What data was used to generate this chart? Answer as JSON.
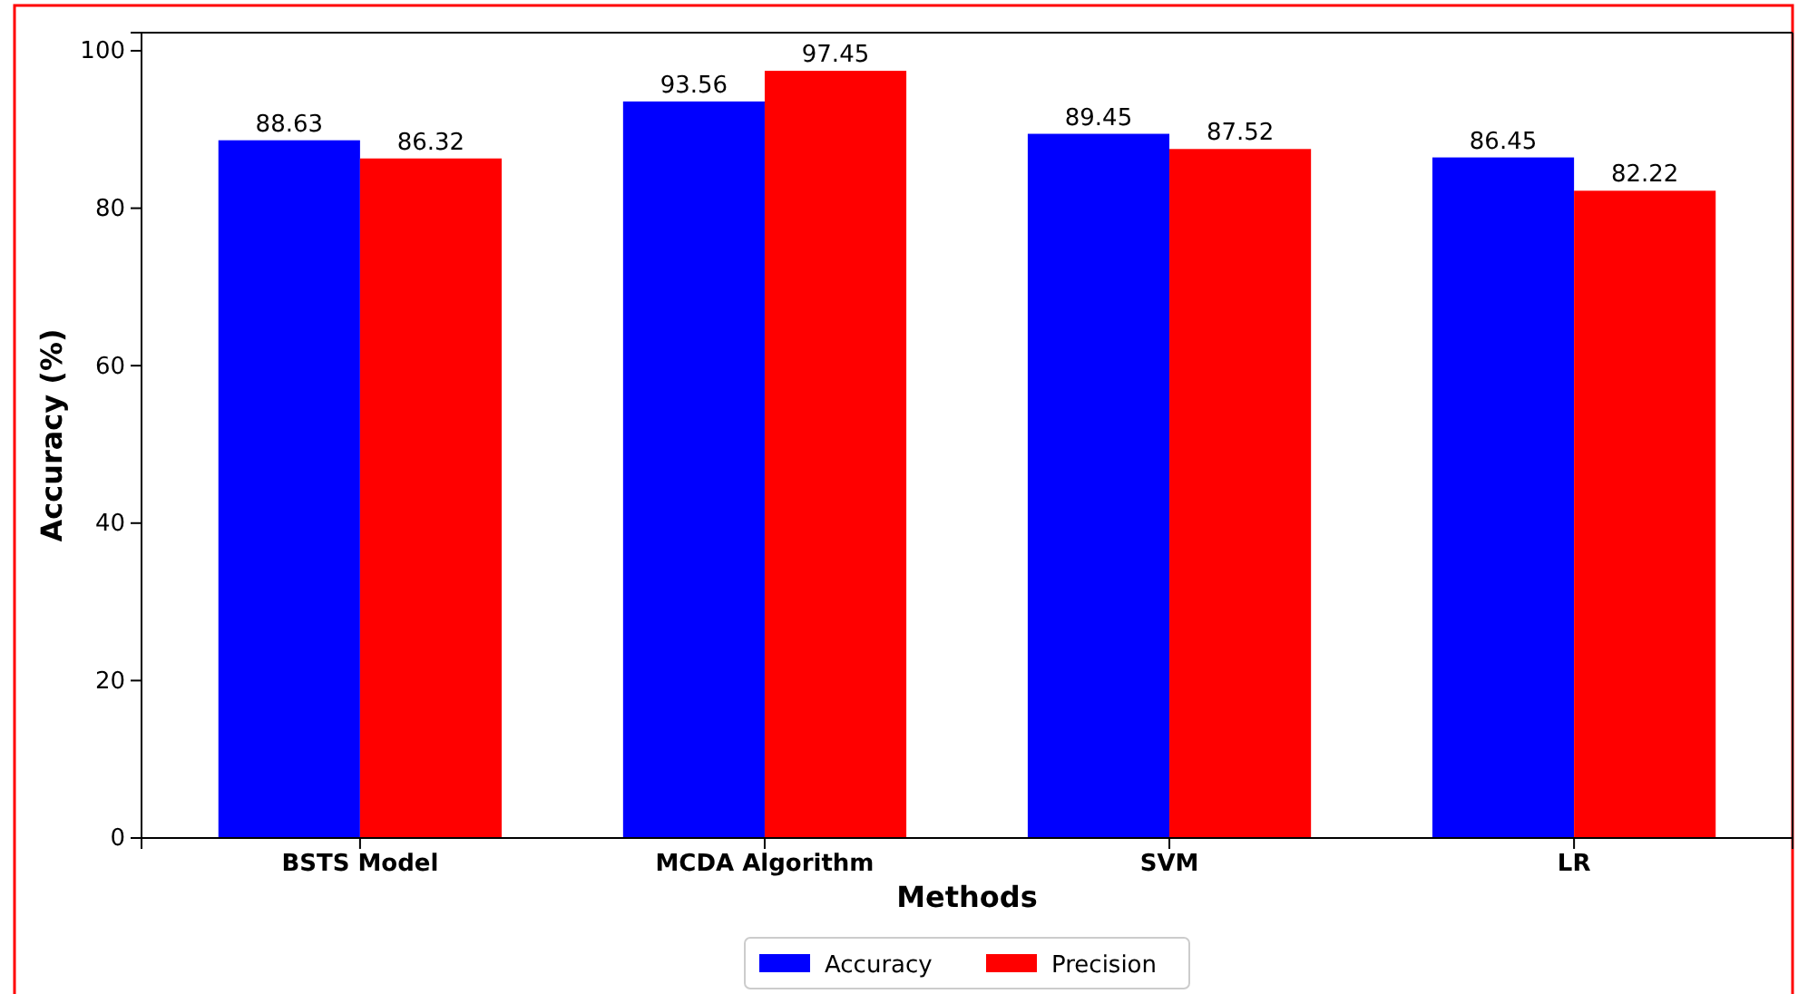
{
  "chart_data": {
    "type": "bar",
    "xlabel": "Methods",
    "ylabel": "Accuracy (%)",
    "categories": [
      "BSTS Model",
      "MCDA Algorithm",
      "SVM",
      "LR"
    ],
    "series": [
      {
        "name": "Accuracy",
        "color": "#0000ff",
        "values": [
          88.63,
          93.56,
          89.45,
          86.45
        ]
      },
      {
        "name": "Precision",
        "color": "#ff0000",
        "values": [
          86.32,
          97.45,
          87.52,
          82.22
        ]
      }
    ],
    "ylim": [
      0,
      102.3
    ],
    "yticks": [
      0,
      20,
      40,
      60,
      80,
      100
    ],
    "data_labels": true,
    "legend": "bottom",
    "grid": false
  }
}
